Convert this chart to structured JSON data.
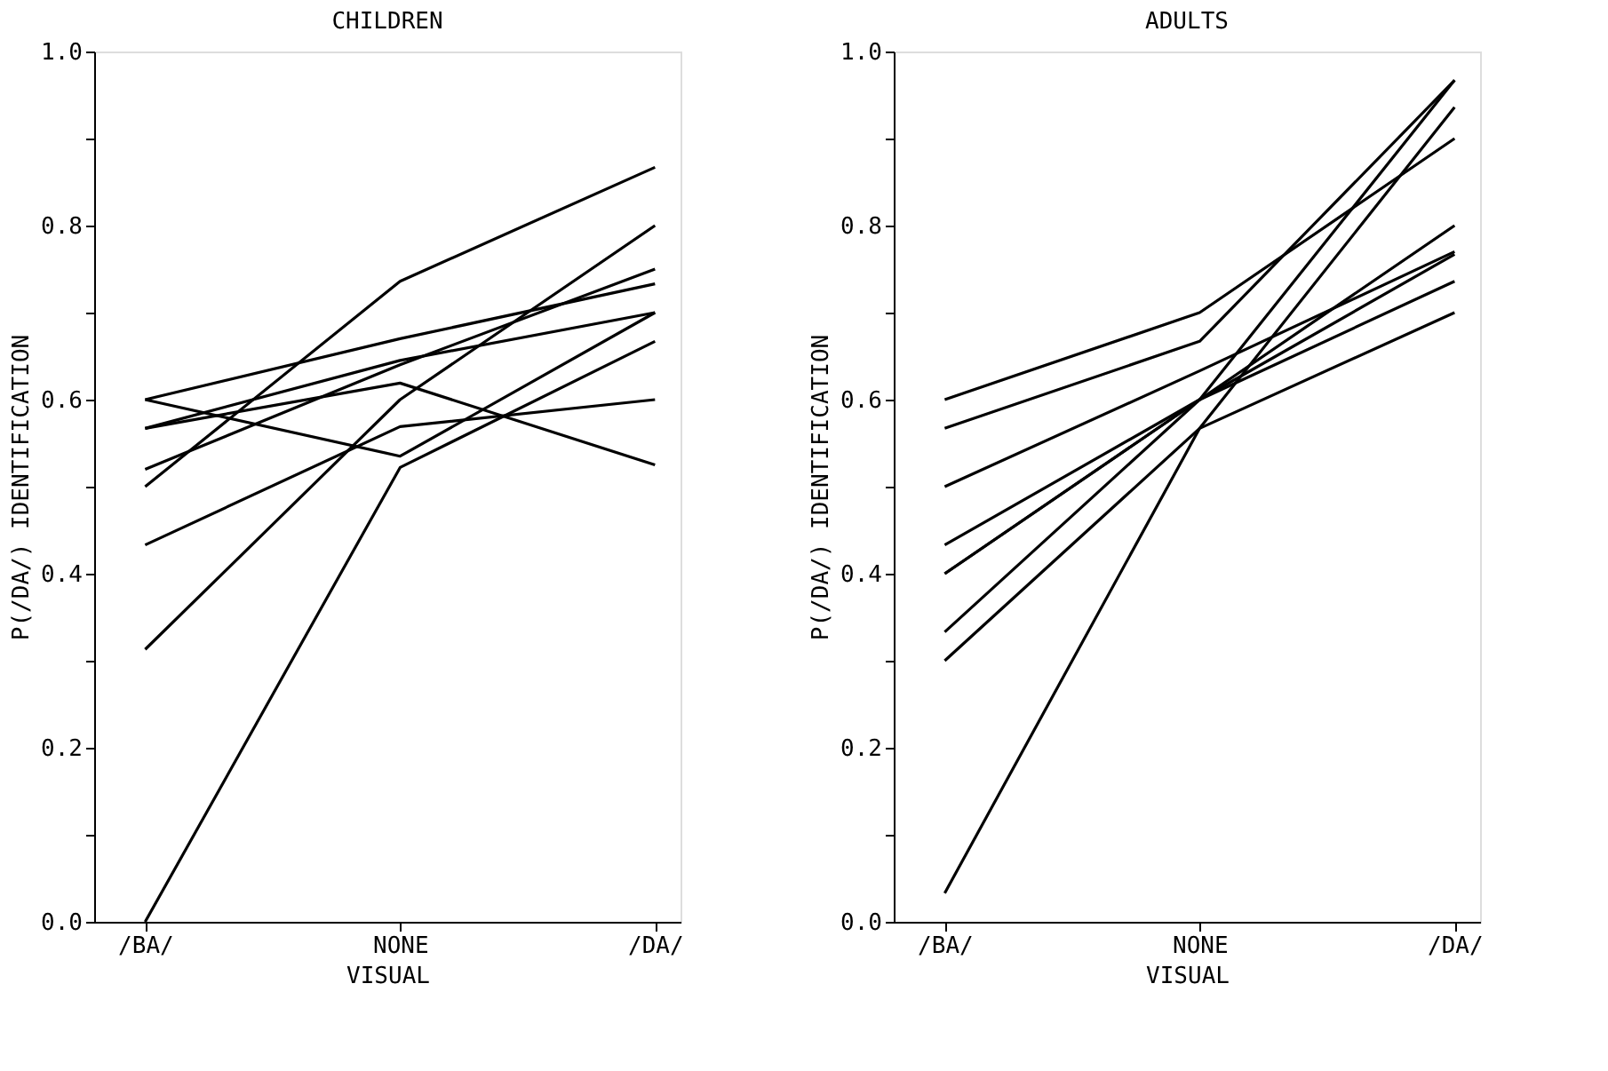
{
  "chart_data": [
    {
      "type": "line",
      "title": "CHILDREN",
      "xlabel": "VISUAL",
      "ylabel": "P(/DA/) IDENTIFICATION",
      "categories": [
        "/BA/",
        "NONE",
        "/DA/"
      ],
      "ylim": [
        0,
        1
      ],
      "yticks": [
        {
          "value": 0,
          "label": "0.0"
        },
        {
          "value": 0.1,
          "label": null
        },
        0.2,
        {
          "value": 0.3,
          "label": null
        },
        0.4,
        {
          "value": 0.5,
          "label": null
        },
        0.6,
        {
          "value": 0.7,
          "label": null
        },
        0.8,
        {
          "value": 0.9,
          "label": null
        },
        {
          "value": 1,
          "label": "1.0"
        }
      ],
      "grid": false,
      "legend": false,
      "marker": "none",
      "line_style": "solid",
      "series": [
        {
          "color": "#000000",
          "values": [
            0.5,
            0.736,
            0.867
          ]
        },
        {
          "color": "#000000",
          "values": [
            0.6,
            0.67,
            0.733
          ]
        },
        {
          "color": "#000000",
          "values": [
            0.6,
            0.535,
            0.7
          ]
        },
        {
          "color": "#000000",
          "values": [
            0.567,
            0.619,
            0.525
          ]
        },
        {
          "color": "#000000",
          "values": [
            0.567,
            0.645,
            0.7
          ]
        },
        {
          "color": "#000000",
          "values": [
            0.52,
            0.64,
            0.75
          ]
        },
        {
          "color": "#000000",
          "values": [
            0.433,
            0.569,
            0.6
          ]
        },
        {
          "color": "#000000",
          "values": [
            0.313,
            0.6,
            0.8
          ]
        },
        {
          "color": "#000000",
          "values": [
            0.0,
            0.522,
            0.667
          ]
        }
      ]
    },
    {
      "type": "line",
      "title": "ADULTS",
      "xlabel": "VISUAL",
      "ylabel": "P(/DA/) IDENTIFICATION",
      "categories": [
        "/BA/",
        "NONE",
        "/DA/"
      ],
      "ylim": [
        0,
        1
      ],
      "yticks": [
        {
          "value": 0,
          "label": "0.0"
        },
        {
          "value": 0.1,
          "label": null
        },
        0.2,
        {
          "value": 0.3,
          "label": null
        },
        0.4,
        {
          "value": 0.5,
          "label": null
        },
        0.6,
        {
          "value": 0.7,
          "label": null
        },
        0.8,
        {
          "value": 0.9,
          "label": null
        },
        {
          "value": 1,
          "label": "1.0"
        }
      ],
      "grid": false,
      "legend": false,
      "marker": "none",
      "line_style": "solid",
      "series": [
        {
          "color": "#000000",
          "values": [
            0.6,
            0.7,
            0.9
          ]
        },
        {
          "color": "#000000",
          "values": [
            0.567,
            0.667,
            0.967
          ]
        },
        {
          "color": "#000000",
          "values": [
            0.5,
            0.633,
            0.77
          ]
        },
        {
          "color": "#000000",
          "values": [
            0.433,
            0.6,
            0.8
          ]
        },
        {
          "color": "#000000",
          "values": [
            0.4,
            0.6,
            0.767
          ]
        },
        {
          "color": "#000000",
          "values": [
            0.4,
            0.6,
            0.736
          ]
        },
        {
          "color": "#000000",
          "values": [
            0.333,
            0.6,
            0.967
          ]
        },
        {
          "color": "#000000",
          "values": [
            0.3,
            0.567,
            0.7
          ]
        },
        {
          "color": "#000000",
          "values": [
            0.033,
            0.567,
            0.936
          ]
        }
      ]
    }
  ]
}
